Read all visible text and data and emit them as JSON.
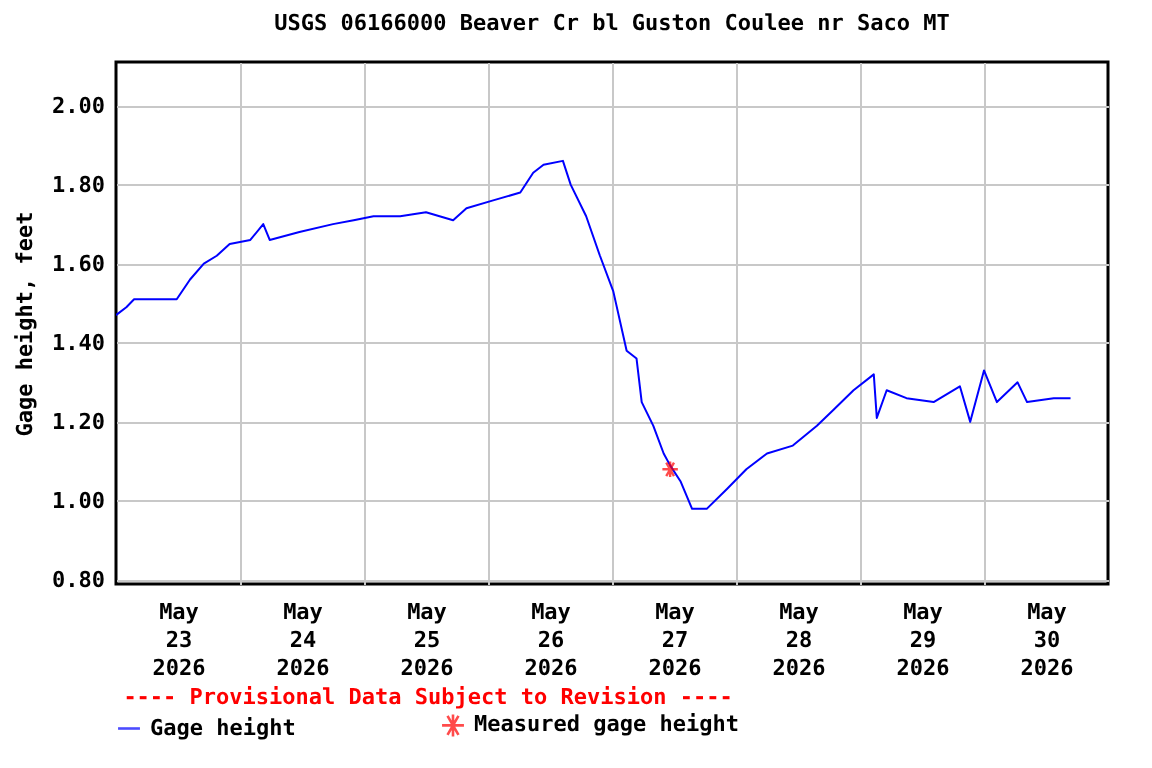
{
  "chart_data": {
    "type": "line",
    "title": "USGS 06166000 Beaver Cr bl Guston Coulee nr Saco MT",
    "ylabel": "Gage height, feet",
    "annotations": [
      "---- Provisional Data Subject to Revision ----"
    ],
    "xlim": [
      "2026-05-23T00:00",
      "2026-05-31T00:00"
    ],
    "xticks": [
      {
        "value": "2026-05-23T12:00",
        "label": "May\n23\n2026"
      },
      {
        "value": "2026-05-24T00:00",
        "label": null
      },
      {
        "value": "2026-05-24T12:00",
        "label": "May\n24\n2026"
      },
      {
        "value": "2026-05-25T00:00",
        "label": null
      },
      {
        "value": "2026-05-25T12:00",
        "label": "May\n25\n2026"
      },
      {
        "value": "2026-05-26T00:00",
        "label": null
      },
      {
        "value": "2026-05-26T12:00",
        "label": "May\n26\n2026"
      },
      {
        "value": "2026-05-27T00:00",
        "label": null
      },
      {
        "value": "2026-05-27T12:00",
        "label": "May\n27\n2026"
      },
      {
        "value": "2026-05-28T00:00",
        "label": null
      },
      {
        "value": "2026-05-28T12:00",
        "label": "May\n28\n2026"
      },
      {
        "value": "2026-05-29T00:00",
        "label": null
      },
      {
        "value": "2026-05-29T12:00",
        "label": "May\n29\n2026"
      },
      {
        "value": "2026-05-30T00:00",
        "label": null
      },
      {
        "value": "2026-05-30T12:00",
        "label": "May\n30\n2026"
      }
    ],
    "ylim": [
      0.79,
      2.11
    ],
    "yticks": [
      {
        "value": 0.8,
        "label": "0.80"
      },
      {
        "value": 1.0,
        "label": "1.00"
      },
      {
        "value": 1.2,
        "label": "1.20"
      },
      {
        "value": 1.4,
        "label": "1.40"
      },
      {
        "value": 1.6,
        "label": "1.60"
      },
      {
        "value": 1.8,
        "label": "1.80"
      },
      {
        "value": 2.0,
        "label": "2.00"
      }
    ],
    "grid": true,
    "legend": "bottom",
    "series": [
      {
        "name": "Gage height",
        "color": "#0000ff",
        "line_style": "solid",
        "x": [
          "2026-05-23T00:00",
          "2026-05-23T02:00",
          "2026-05-23T03:30",
          "2026-05-23T07:15",
          "2026-05-23T11:45",
          "2026-05-23T14:20",
          "2026-05-23T17:00",
          "2026-05-23T19:30",
          "2026-05-23T22:00",
          "2026-05-24T02:00",
          "2026-05-24T04:30",
          "2026-05-24T05:45",
          "2026-05-24T11:30",
          "2026-05-24T18:00",
          "2026-05-24T22:00",
          "2026-05-25T01:50",
          "2026-05-25T07:00",
          "2026-05-25T12:00",
          "2026-05-25T17:15",
          "2026-05-25T19:50",
          "2026-05-26T01:00",
          "2026-05-26T06:15",
          "2026-05-26T08:45",
          "2026-05-26T10:45",
          "2026-05-26T14:30",
          "2026-05-26T16:00",
          "2026-05-26T19:00",
          "2026-05-26T21:40",
          "2026-05-27T00:15",
          "2026-05-27T02:50",
          "2026-05-27T04:45",
          "2026-05-27T05:45",
          "2026-05-27T08:00",
          "2026-05-27T10:00",
          "2026-05-27T11:15",
          "2026-05-27T13:15",
          "2026-05-27T15:30",
          "2026-05-27T18:20",
          "2026-05-27T22:15",
          "2026-05-28T02:00",
          "2026-05-28T06:00",
          "2026-05-28T11:00",
          "2026-05-28T15:40",
          "2026-05-28T18:50",
          "2026-05-28T22:45",
          "2026-05-29T02:40",
          "2026-05-29T03:15",
          "2026-05-29T05:10",
          "2026-05-29T09:00",
          "2026-05-29T14:15",
          "2026-05-29T19:20",
          "2026-05-29T21:20",
          "2026-05-30T00:00",
          "2026-05-30T02:30",
          "2026-05-30T06:30",
          "2026-05-30T08:20",
          "2026-05-30T13:30",
          "2026-05-30T16:45"
        ],
        "values": [
          1.47,
          1.49,
          1.51,
          1.51,
          1.51,
          1.56,
          1.6,
          1.62,
          1.65,
          1.66,
          1.7,
          1.66,
          1.68,
          1.7,
          1.71,
          1.72,
          1.72,
          1.73,
          1.71,
          1.74,
          1.76,
          1.78,
          1.83,
          1.85,
          1.86,
          1.8,
          1.72,
          1.62,
          1.53,
          1.38,
          1.36,
          1.25,
          1.19,
          1.12,
          1.09,
          1.05,
          0.98,
          0.98,
          1.03,
          1.08,
          1.12,
          1.14,
          1.19,
          1.23,
          1.28,
          1.32,
          1.21,
          1.28,
          1.26,
          1.25,
          1.29,
          1.2,
          1.33,
          1.25,
          1.3,
          1.25,
          1.26,
          1.26
        ]
      },
      {
        "name": "Measured gage height",
        "type": "scatter",
        "color": "#ff0000",
        "marker": "cross",
        "x": [
          "2026-05-27T11:15"
        ],
        "values": [
          1.08
        ]
      }
    ]
  }
}
